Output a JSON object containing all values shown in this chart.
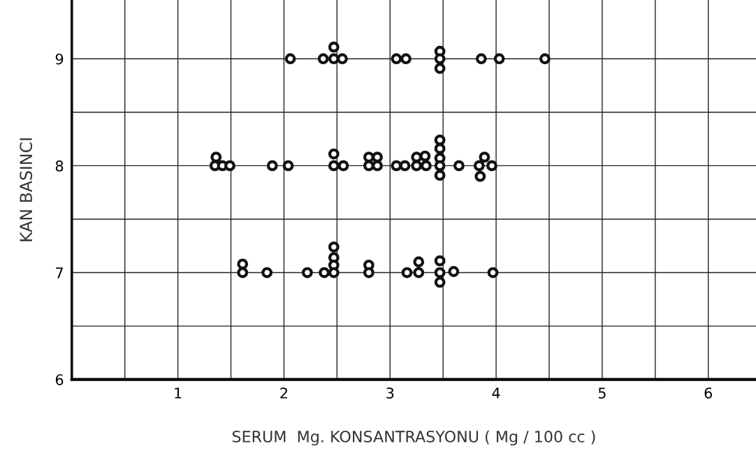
{
  "chart_data": {
    "type": "scatter",
    "xlabel": "SERUM  Mg. KONSANTRASYONU ( Mg / 100 cc )",
    "ylabel": "KAN BASINCI",
    "xlim": [
      0,
      6.45
    ],
    "ylim": [
      6,
      9.55
    ],
    "xticks": [
      {
        "value": 0.5,
        "label": null
      },
      1,
      {
        "value": 1.5,
        "label": null
      },
      2,
      {
        "value": 2.5,
        "label": null
      },
      3,
      {
        "value": 3.5,
        "label": null
      },
      4,
      {
        "value": 4.5,
        "label": null
      },
      5,
      {
        "value": 5.5,
        "label": null
      },
      6
    ],
    "yticks": [
      6,
      {
        "value": 6.5,
        "label": null
      },
      7,
      {
        "value": 7.5,
        "label": null
      },
      8,
      {
        "value": 8.5,
        "label": null
      },
      9
    ],
    "grid": true,
    "marker": "circle",
    "series": [
      {
        "color": "#111111",
        "x": [
          2.06,
          2.37,
          2.47,
          2.47,
          2.55,
          3.06,
          3.15,
          3.47,
          3.47,
          3.47,
          3.86,
          4.03,
          4.46,
          1.36,
          1.35,
          1.42,
          1.49,
          1.89,
          2.04,
          2.47,
          2.47,
          2.56,
          2.8,
          2.88,
          2.8,
          2.88,
          3.06,
          3.14,
          3.25,
          3.33,
          3.25,
          3.34,
          3.47,
          3.47,
          3.47,
          3.47,
          3.47,
          3.65,
          3.84,
          3.89,
          3.85,
          3.96,
          1.61,
          1.61,
          1.84,
          2.22,
          2.38,
          2.47,
          2.47,
          2.47,
          2.47,
          2.8,
          2.8,
          3.16,
          3.27,
          3.27,
          3.47,
          3.47,
          3.47,
          3.6,
          3.97
        ],
        "values": [
          9.0,
          9.0,
          9.11,
          9.0,
          9.0,
          9.0,
          9.0,
          9.07,
          9.0,
          8.91,
          9.0,
          9.0,
          9.0,
          8.08,
          8.0,
          8.0,
          8.0,
          8.0,
          8.0,
          8.11,
          8.0,
          8.0,
          8.08,
          8.08,
          8.0,
          8.0,
          8.0,
          8.0,
          8.08,
          8.09,
          8.0,
          8.0,
          8.24,
          8.16,
          8.07,
          8.0,
          7.91,
          8.0,
          8.0,
          8.08,
          7.9,
          8.0,
          7.08,
          7.0,
          7.0,
          7.0,
          7.0,
          7.24,
          7.14,
          7.07,
          7.0,
          7.07,
          7.0,
          7.0,
          7.1,
          7.0,
          7.11,
          7.0,
          6.91,
          7.01,
          7.0
        ]
      }
    ]
  }
}
